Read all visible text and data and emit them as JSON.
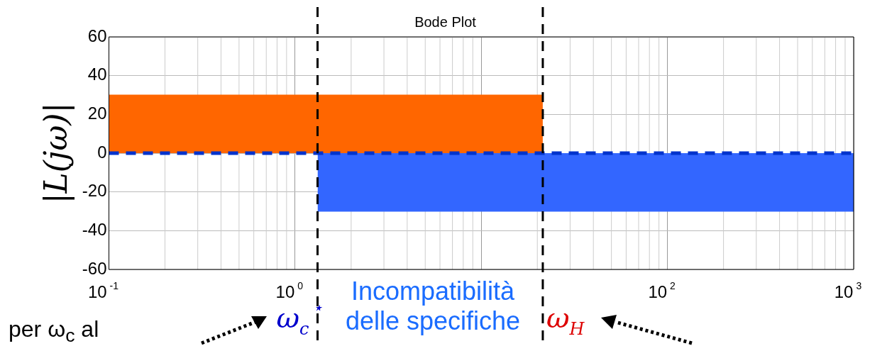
{
  "chart_data": {
    "type": "area",
    "title": "Bode Plot",
    "ylabel": "|L(jω)|",
    "xlim": [
      0.1,
      1000
    ],
    "ylim": [
      -60,
      60
    ],
    "log": "x",
    "grid": true,
    "legend": false,
    "xticks": [
      {
        "value": 0.1,
        "label": "10$^{-1}$"
      },
      {
        "value": 1,
        "label": "10$^{0}$"
      },
      {
        "value": 10,
        "label": null
      },
      {
        "value": 100,
        "label": "10$^{2}$"
      },
      {
        "value": 1000,
        "label": "10$^{3}$"
      }
    ],
    "yticks": [
      -60,
      -40,
      -20,
      0,
      20,
      40,
      60
    ],
    "series": [
      {
        "color": "#ff6600",
        "x": [
          0.1,
          21.4
        ],
        "values": [
          30,
          30
        ]
      },
      {
        "color": "#3366ff",
        "x": [
          1.32,
          1000
        ],
        "values": [
          -30,
          -30
        ]
      },
      {
        "type": "line",
        "color": "#0033cc",
        "line_style": "dashed",
        "marker": "none",
        "x": [
          0.1,
          1000
        ],
        "values": [
          0,
          0
        ]
      }
    ],
    "ref_lines": [
      {
        "axis": "x",
        "value": 1.32,
        "label": "ω$_{c}$$^{⋆}$",
        "color": "#000000",
        "line_style": "dashed"
      },
      {
        "axis": "x",
        "value": 21.4,
        "label": "ω$_{H}$",
        "color": "#000000",
        "line_style": "dashed"
      }
    ],
    "annotations": [
      "Incompatibilità delle specifiche",
      "per ω$_{c}$ al"
    ]
  }
}
